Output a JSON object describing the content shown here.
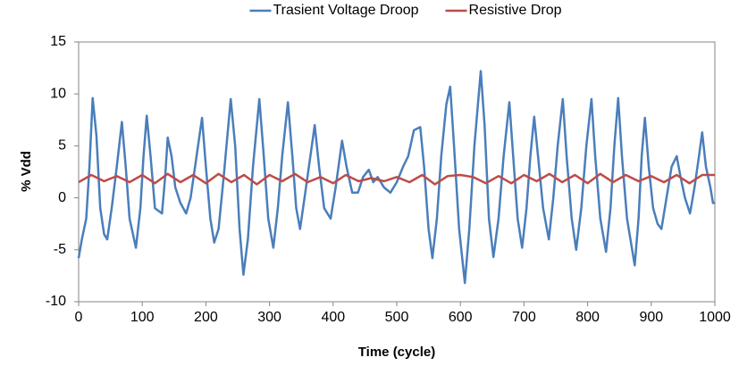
{
  "chart_data": {
    "type": "line",
    "x_label": "Time (cycle)",
    "y_label": "% Vdd",
    "xlim": [
      0,
      1000
    ],
    "xticks": [
      0,
      100,
      200,
      300,
      400,
      500,
      600,
      700,
      800,
      900,
      1000
    ],
    "ylim": [
      -10,
      15
    ],
    "yticks": [
      -10,
      -5,
      0,
      5,
      10,
      15
    ],
    "grid": false,
    "legend": "top",
    "series": [
      {
        "name": "Trasient Voltage Droop",
        "color": "#4a7ebb",
        "x": [
          0,
          5,
          12,
          17,
          22,
          28,
          34,
          40,
          45,
          52,
          60,
          68,
          74,
          80,
          90,
          97,
          102,
          107,
          113,
          120,
          131,
          136,
          140,
          146,
          152,
          160,
          169,
          176,
          183,
          194,
          200,
          207,
          213,
          220,
          228,
          239,
          246,
          253,
          259,
          266,
          274,
          284,
          291,
          298,
          306,
          313,
          320,
          329,
          336,
          342,
          348,
          355,
          362,
          371,
          378,
          386,
          396,
          404,
          414,
          421,
          430,
          439,
          447,
          456,
          463,
          470,
          480,
          490,
          500,
          510,
          518,
          527,
          537,
          543,
          550,
          556,
          563,
          570,
          578,
          584,
          590,
          598,
          607,
          614,
          622,
          632,
          638,
          645,
          652,
          660,
          668,
          677,
          683,
          690,
          697,
          704,
          710,
          716,
          722,
          730,
          739,
          746,
          753,
          761,
          767,
          775,
          782,
          790,
          798,
          806,
          812,
          820,
          829,
          836,
          842,
          848,
          854,
          862,
          874,
          880,
          885,
          890,
          896,
          903,
          910,
          916,
          924,
          932,
          940,
          946,
          953,
          961,
          968,
          975,
          980,
          986,
          993,
          997,
          1000
        ],
        "values": [
          -5.8,
          -4,
          -2,
          3,
          9.6,
          6,
          -1,
          -3.5,
          -4,
          -1,
          3,
          7.3,
          3,
          -2,
          -4.8,
          -1,
          4,
          7.9,
          4,
          -1,
          -1.5,
          2,
          5.8,
          4,
          1,
          -0.5,
          -1.5,
          0,
          3,
          7.7,
          3,
          -2,
          -4.3,
          -3,
          2,
          9.5,
          5,
          -3,
          -7.4,
          -4,
          3,
          9.5,
          4,
          -2,
          -4.8,
          -1,
          4,
          9.2,
          4,
          -1,
          -3,
          0,
          3,
          7,
          3,
          -1,
          -2,
          1,
          5.5,
          3,
          0.5,
          0.5,
          2,
          2.7,
          1.5,
          2,
          1,
          0.5,
          1.5,
          3,
          4,
          6.5,
          6.8,
          3,
          -3,
          -5.8,
          -2,
          4,
          9,
          10.7,
          5,
          -3,
          -8.2,
          -3,
          5,
          12.2,
          7,
          -2,
          -5.7,
          -2,
          4,
          9.2,
          4,
          -2,
          -4.8,
          -1,
          4,
          7.8,
          4,
          -1,
          -4,
          0,
          5,
          9.5,
          4,
          -2,
          -5,
          -1,
          5,
          9.5,
          4,
          -2,
          -5.2,
          -1,
          5,
          9.6,
          4,
          -2,
          -6.5,
          -2,
          4,
          7.7,
          3,
          -1,
          -2.5,
          -3,
          0,
          3,
          4,
          2,
          0,
          -1.5,
          1,
          4,
          6.3,
          3,
          1,
          -0.5,
          -0.5
        ]
      },
      {
        "name": "Resistive Drop",
        "color": "#be4b48",
        "x": [
          0,
          20,
          40,
          60,
          80,
          100,
          120,
          140,
          160,
          180,
          200,
          220,
          240,
          260,
          280,
          300,
          320,
          340,
          360,
          380,
          400,
          420,
          440,
          460,
          480,
          500,
          520,
          540,
          560,
          580,
          600,
          620,
          640,
          660,
          680,
          700,
          720,
          740,
          760,
          780,
          800,
          820,
          840,
          860,
          880,
          900,
          920,
          940,
          960,
          980,
          1000
        ],
        "values": [
          1.5,
          2.2,
          1.6,
          2.1,
          1.5,
          2.2,
          1.4,
          2.3,
          1.5,
          2.2,
          1.4,
          2.3,
          1.5,
          2.2,
          1.3,
          2.2,
          1.6,
          2.3,
          1.5,
          2.0,
          1.4,
          2.2,
          1.6,
          1.9,
          1.6,
          2.0,
          1.5,
          2.2,
          1.3,
          2.1,
          2.2,
          2.0,
          1.4,
          2.1,
          1.4,
          2.2,
          1.6,
          2.3,
          1.5,
          2.2,
          1.4,
          2.3,
          1.5,
          2.2,
          1.6,
          2.1,
          1.5,
          2.2,
          1.4,
          2.2,
          2.2
        ]
      }
    ]
  }
}
